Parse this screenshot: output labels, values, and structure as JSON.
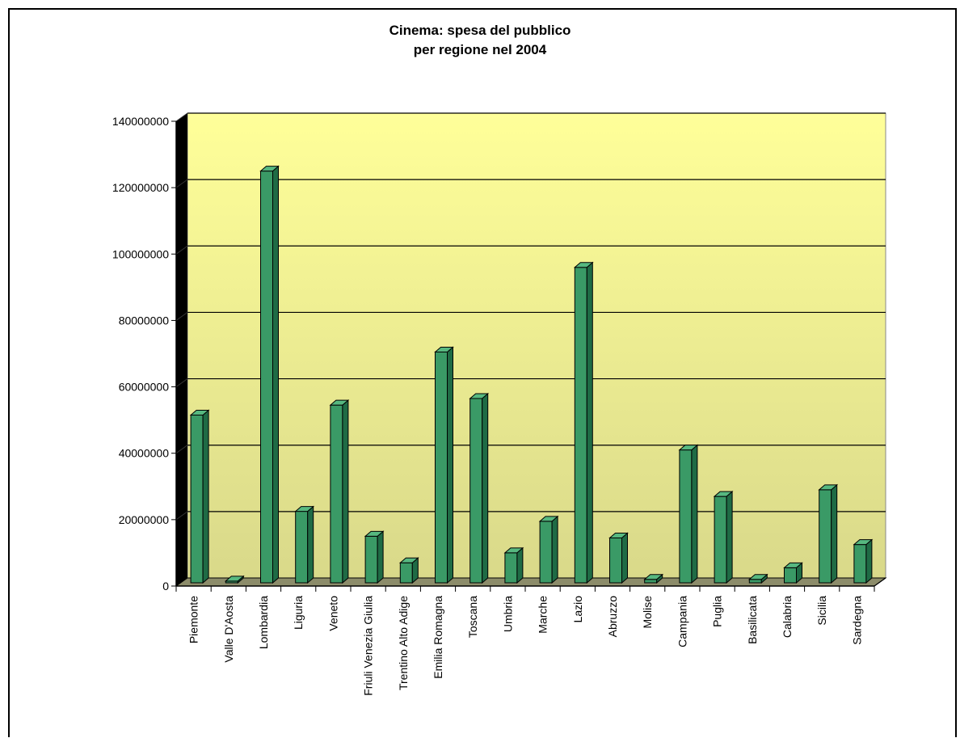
{
  "chart_data": {
    "type": "bar",
    "title_line1": "Cinema: spesa del pubblico",
    "title_line2": "per regione nel 2004",
    "xlabel": "",
    "ylabel": "",
    "ylim": [
      0,
      140000000
    ],
    "yticks": [
      "0",
      "20000000",
      "40000000",
      "60000000",
      "80000000",
      "100000000",
      "120000000",
      "140000000"
    ],
    "grid": true,
    "legend": "none",
    "categories": [
      "Piemonte",
      "Valle D'Aosta",
      "Lombardia",
      "Liguria",
      "Veneto",
      "Friuli Venezia Giulia",
      "Trentino Alto Adige",
      "Emilia Romagna",
      "Toscana",
      "Umbria",
      "Marche",
      "Lazio",
      "Abruzzo",
      "Molise",
      "Campania",
      "Puglia",
      "Basilicata",
      "Calabria",
      "Sicilia",
      "Sardegna"
    ],
    "values": [
      51500000,
      1500000,
      125000000,
      22500000,
      54500000,
      15000000,
      7000000,
      70500000,
      56500000,
      10000000,
      19500000,
      96000000,
      14500000,
      2000000,
      41000000,
      27000000,
      2000000,
      5500000,
      29000000,
      12500000
    ],
    "colors": {
      "bar_front": "#3a9a66",
      "bar_side": "#1f6b45",
      "bar_top": "#56b880",
      "plot_top": "#ffff99",
      "plot_bottom": "#d9d98a",
      "wall": "#000000",
      "gridline": "#000000"
    }
  }
}
